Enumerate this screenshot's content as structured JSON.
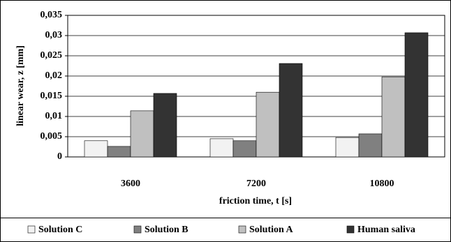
{
  "chart_data": {
    "type": "bar",
    "x_label": "friction time, t [s]",
    "y_label": "linear wear, z [mm]",
    "categories": [
      "3600",
      "7200",
      "10800"
    ],
    "series": [
      {
        "name": "Solution C",
        "color": "#f2f2f2",
        "values": [
          0.004,
          0.0045,
          0.0048
        ]
      },
      {
        "name": "Solution B",
        "color": "#808080",
        "values": [
          0.0026,
          0.004,
          0.0057
        ]
      },
      {
        "name": "Solution A",
        "color": "#c0c0c0",
        "values": [
          0.0114,
          0.016,
          0.0198
        ]
      },
      {
        "name": "Human saliva",
        "color": "#333333",
        "values": [
          0.0157,
          0.0231,
          0.0307
        ]
      }
    ],
    "ylim": [
      0,
      0.035
    ],
    "yticks": [
      0,
      {
        "value": 0.005,
        "label": "0,005"
      },
      {
        "value": 0.01,
        "label": "0,01"
      },
      {
        "value": 0.015,
        "label": "0,015"
      },
      {
        "value": 0.02,
        "label": "0,02"
      },
      {
        "value": 0.025,
        "label": "0,025"
      },
      {
        "value": 0.03,
        "label": "0,03"
      },
      {
        "value": 0.035,
        "label": "0,035"
      }
    ],
    "grid": true,
    "legend": "bottom"
  }
}
